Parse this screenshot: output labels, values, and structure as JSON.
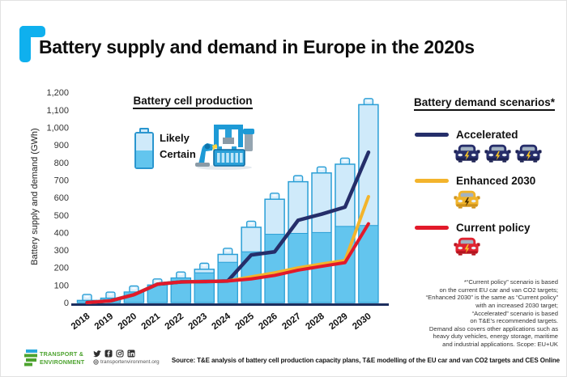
{
  "header": {
    "title": "Battery supply and demand in Europe in the 2020s"
  },
  "chart": {
    "y_axis_label": "Battery supply and demand (GWh)",
    "legend_title": "Battery cell production",
    "legend_likely": "Likely",
    "legend_certain": "Certain"
  },
  "chart_data": {
    "type": "bar+line",
    "title": "Battery supply and demand in Europe in the 2020s",
    "ylabel": "Battery supply and demand (GWh)",
    "xlabel": "",
    "categories": [
      "2018",
      "2019",
      "2020",
      "2021",
      "2022",
      "2023",
      "2024",
      "2025",
      "2026",
      "2027",
      "2028",
      "2029",
      "2030"
    ],
    "ylim": [
      0,
      1200
    ],
    "ytick_step": 100,
    "grid": false,
    "legend_position": "top-left",
    "colors": {
      "likely": "#cfeafa",
      "certain": "#63c5ee",
      "bar_border": "#2a9fd6"
    },
    "series": [
      {
        "name": "Likely",
        "type": "bar",
        "role": "total-production-capacity",
        "values": [
          12,
          25,
          60,
          100,
          140,
          190,
          275,
          430,
          590,
          690,
          740,
          790,
          1130
        ]
      },
      {
        "name": "Certain",
        "type": "bar",
        "role": "certain-production-capacity",
        "values": [
          12,
          25,
          60,
          100,
          140,
          170,
          230,
          290,
          390,
          395,
          400,
          435,
          440
        ]
      },
      {
        "name": "Accelerated",
        "type": "line",
        "color": "#252e6a",
        "values": [
          0,
          10,
          45,
          105,
          118,
          120,
          123,
          272,
          290,
          470,
          505,
          545,
          858
        ]
      },
      {
        "name": "Enhanced 2030",
        "type": "line",
        "color": "#f3b42c",
        "values": [
          0,
          10,
          45,
          105,
          118,
          120,
          123,
          147,
          170,
          198,
          220,
          240,
          605
        ]
      },
      {
        "name": "Current policy",
        "type": "line",
        "color": "#e2192a",
        "values": [
          0,
          10,
          45,
          105,
          118,
          120,
          123,
          135,
          155,
          185,
          207,
          228,
          450
        ]
      }
    ]
  },
  "scenarios": {
    "title": "Battery demand scenarios*",
    "items": [
      {
        "label": "Accelerated",
        "color": "#252e6a",
        "cars": 3
      },
      {
        "label": "Enhanced 2030",
        "color": "#f3b42c",
        "cars": 1
      },
      {
        "label": "Current policy",
        "color": "#e2192a",
        "cars": 1
      }
    ],
    "footnote_lines": [
      "*“Current policy” scenario is based",
      "on the current EU car and van CO2 targets;",
      "“Enhanced 2030” is the same as “Current policy”",
      "with an increased 2030 target;",
      "“Accelerated” scenario is based",
      "on T&E’s recommended targets.",
      "Demand also covers other applications such as",
      "heavy duty vehicles, energy storage, maritime",
      "and industrial applications. Scope: EU+UK"
    ]
  },
  "footer": {
    "logo_line1": "TRANSPORT &",
    "logo_line2": "ENVIRONMENT",
    "social_icons": [
      "twitter",
      "facebook",
      "instagram",
      "linkedin"
    ],
    "website": "transportenvironment.org",
    "source": "Source: T&E analysis of battery cell production capacity plans, T&E modelling of the EU car and van CO2 targets and CES Online"
  },
  "colors": {
    "brand_cyan": "#0fb0ee",
    "brand_green": "#4da32f",
    "axis": "#1c2e5e"
  }
}
